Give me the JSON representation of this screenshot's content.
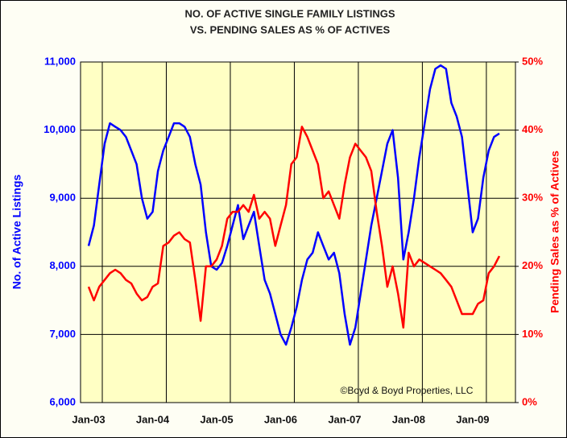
{
  "chart_data": {
    "type": "line",
    "title": "NO. OF ACTIVE SINGLE FAMILY LISTINGS",
    "subtitle": "VS. PENDING SALES AS % OF ACTIVES",
    "ylabel": "No. of Active Listings",
    "y2label": "Pending Sales as % of Actives",
    "annotation": "©Boyd & Boyd Properties, LLC",
    "categories": [
      "Jan-03",
      null,
      null,
      null,
      null,
      null,
      null,
      null,
      null,
      null,
      null,
      null,
      "Jan-04",
      null,
      null,
      null,
      null,
      null,
      null,
      null,
      null,
      null,
      null,
      null,
      "Jan-05",
      null,
      null,
      null,
      null,
      null,
      null,
      null,
      null,
      null,
      null,
      null,
      "Jan-06",
      null,
      null,
      null,
      null,
      null,
      null,
      null,
      null,
      null,
      null,
      null,
      "Jan-07",
      null,
      null,
      null,
      null,
      null,
      null,
      null,
      null,
      null,
      null,
      null,
      "Jan-08",
      null,
      null,
      null,
      null,
      null,
      null,
      null,
      null,
      null,
      null,
      null,
      "Jan-09",
      null,
      null,
      null,
      null,
      null
    ],
    "series": [
      {
        "name": "No. of Active Listings",
        "color": "#0000ff",
        "axis": "y",
        "values": [
          8300,
          8600,
          9200,
          9800,
          10100,
          10050,
          10000,
          9900,
          9700,
          9500,
          9000,
          8700,
          8800,
          9400,
          9700,
          9900,
          10100,
          10100,
          10050,
          9900,
          9500,
          9200,
          8500,
          8000,
          7950,
          8050,
          8300,
          8600,
          8900,
          8400,
          8600,
          8800,
          8300,
          7800,
          7600,
          7300,
          7000,
          6850,
          7100,
          7400,
          7800,
          8100,
          8200,
          8500,
          8300,
          8100,
          8200,
          7900,
          7300,
          6850,
          7100,
          7600,
          8100,
          8600,
          9000,
          9400,
          9800,
          10000,
          9300,
          8100,
          8500,
          9000,
          9600,
          10100,
          10600,
          10900,
          10950,
          10900,
          10400,
          10200,
          9900,
          9200,
          8500,
          8700,
          9300,
          9700,
          9900,
          9950
        ]
      },
      {
        "name": "Pending Sales as % of Actives",
        "color": "#ff0000",
        "axis": "y2",
        "values": [
          17,
          15,
          17,
          18,
          19,
          19.5,
          19,
          18,
          17.5,
          16,
          15,
          15.5,
          17,
          17.5,
          23,
          23.5,
          24.5,
          25,
          24,
          23.5,
          18,
          12,
          20,
          20,
          21,
          23,
          27,
          28,
          28,
          29,
          28,
          30.5,
          27,
          28,
          27,
          23,
          26,
          29,
          35,
          36,
          40.5,
          39,
          37,
          35,
          30,
          31,
          29,
          27,
          32,
          36,
          38,
          37,
          36,
          34,
          28,
          23,
          17,
          20,
          16,
          11,
          22,
          20,
          21,
          20.5,
          20,
          19.5,
          19,
          18,
          17,
          15,
          13,
          13,
          13,
          14.5,
          15,
          19,
          20,
          21.5
        ]
      }
    ],
    "ylim": [
      6000,
      11000
    ],
    "yticks": [
      {
        "value": 6000,
        "label": "6,000"
      },
      {
        "value": 7000,
        "label": "7,000"
      },
      {
        "value": 8000,
        "label": "8,000"
      },
      {
        "value": 9000,
        "label": "9,000"
      },
      {
        "value": 10000,
        "label": "10,000"
      },
      {
        "value": 11000,
        "label": "11,000"
      }
    ],
    "y2lim": [
      0,
      50
    ],
    "y2ticks": [
      {
        "value": 0,
        "label": "0%"
      },
      {
        "value": 10,
        "label": "10%"
      },
      {
        "value": 20,
        "label": "20%"
      },
      {
        "value": 30,
        "label": "30%"
      },
      {
        "value": 40,
        "label": "40%"
      },
      {
        "value": 50,
        "label": "50%"
      }
    ],
    "grid": true
  }
}
